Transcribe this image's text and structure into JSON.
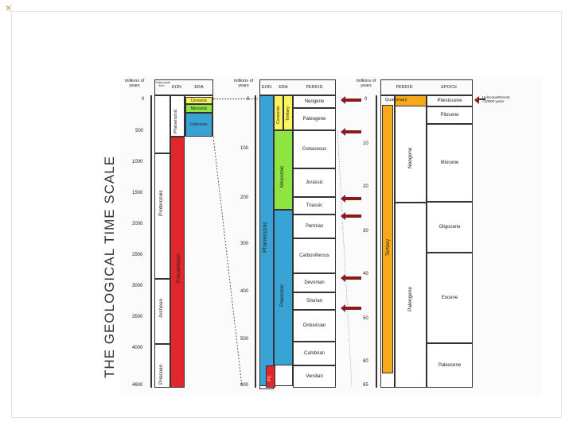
{
  "slide": {
    "title": "THE GEOLOGICAL TIME SCALE",
    "corner_mark": "✕"
  },
  "colors": {
    "cenozoic": "#fff35c",
    "mesozoic": "#8ee53f",
    "paleozoic": "#3aa3d6",
    "precambrian": "#e3262c",
    "tertiary": "#f7a81b",
    "arrow": "#8c1a1a"
  },
  "col1": {
    "header_mya": "millions of years",
    "header_proterozoic": "Proterozoic Eon",
    "header_eon": "EON",
    "header_era": "ERA",
    "ticks": [
      "0",
      "500",
      "1000",
      "1500",
      "2000",
      "2500",
      "3000",
      "3500",
      "4000",
      "4600"
    ],
    "eons": [
      "Phanerozoic",
      "Proterozoic",
      "Precambrian",
      "Archean",
      "Priscoan"
    ],
    "eras": [
      "Cenozoic",
      "Mesozoic",
      "Paleozoic"
    ]
  },
  "col2": {
    "header_mya": "millions of years",
    "header_eon": "EON",
    "header_era": "ERA",
    "header_period": "PERIOD",
    "ticks": [
      "0",
      "100",
      "200",
      "300",
      "400",
      "500",
      "600"
    ],
    "eon": "Phanerozoic",
    "eras": [
      "Cenozoic",
      "Tertiary",
      "Mesozoic",
      "Paleozoic",
      "PC"
    ],
    "periods": [
      "Neogene",
      "Paleogene",
      "Cretaceous",
      "Jurassic",
      "Triassic",
      "Permian",
      "Carboniferous",
      "Devonian",
      "Silurian",
      "Ordovician",
      "Cambrian",
      "Vendian"
    ]
  },
  "col3": {
    "header_mya": "millions of years",
    "header_period": "PERIOD",
    "header_epoch": "EPOCH",
    "ticks": [
      "0",
      "10",
      "20",
      "30",
      "40",
      "50",
      "60",
      "65"
    ],
    "periods": [
      "Quaternary",
      "Tertiary",
      "Neogene",
      "Paleogene"
    ],
    "epochs": [
      "Pleistocene",
      "Pliocene",
      "Miocene",
      "Oligocene",
      "Eocene",
      "Paleocene"
    ],
    "note": "Holocene/Recent <10000 years"
  }
}
